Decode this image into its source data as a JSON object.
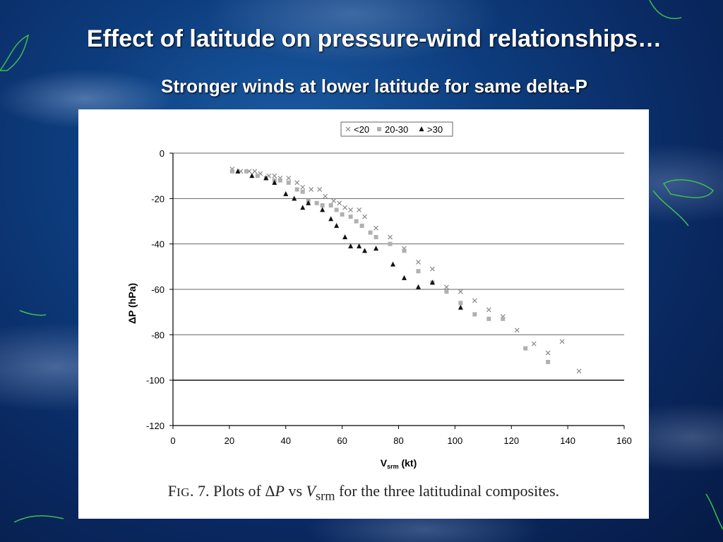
{
  "slide": {
    "title": "Effect of latitude on pressure-wind relationships…",
    "subtitle": "Stronger winds at lower latitude for same delta-P"
  },
  "figure": {
    "caption_prefix": "F",
    "caption_fig_sc": "IG",
    "caption_num": ". 7. Plots of ",
    "caption_delta": "Δ",
    "caption_p": "P",
    "caption_vs": " vs ",
    "caption_v": "V",
    "caption_sub": "srm",
    "caption_rest": " for the three latitudinal composites."
  },
  "chart_data": {
    "type": "scatter",
    "xlabel_main": "V",
    "xlabel_sub": "srm",
    "xlabel_unit": " (kt)",
    "ylabel": "ΔP (hPa)",
    "xlim": [
      0,
      160
    ],
    "ylim": [
      -120,
      0
    ],
    "xticks": [
      0,
      20,
      40,
      60,
      80,
      100,
      120,
      140,
      160
    ],
    "yticks": [
      0,
      -20,
      -40,
      -60,
      -80,
      -100,
      -120
    ],
    "grid": "horizontal",
    "legend_position": "top",
    "series": [
      {
        "name": "<20",
        "marker": "x",
        "color": "#8a8a8a",
        "points": [
          [
            21,
            -7
          ],
          [
            24,
            -8
          ],
          [
            27,
            -8
          ],
          [
            29,
            -8
          ],
          [
            31,
            -9
          ],
          [
            34,
            -10
          ],
          [
            36,
            -10
          ],
          [
            38,
            -11
          ],
          [
            41,
            -11
          ],
          [
            44,
            -13
          ],
          [
            46,
            -15
          ],
          [
            49,
            -16
          ],
          [
            52,
            -16
          ],
          [
            54,
            -19
          ],
          [
            57,
            -21
          ],
          [
            59,
            -22
          ],
          [
            61,
            -24
          ],
          [
            63,
            -25
          ],
          [
            66,
            -25
          ],
          [
            68,
            -28
          ],
          [
            72,
            -33
          ],
          [
            77,
            -37
          ],
          [
            82,
            -42
          ],
          [
            87,
            -48
          ],
          [
            92,
            -51
          ],
          [
            97,
            -59
          ],
          [
            102,
            -61
          ],
          [
            107,
            -65
          ],
          [
            112,
            -69
          ],
          [
            117,
            -72
          ],
          [
            122,
            -78
          ],
          [
            128,
            -84
          ],
          [
            133,
            -88
          ],
          [
            138,
            -83
          ],
          [
            144,
            -96
          ]
        ]
      },
      {
        "name": "20-30",
        "marker": "square",
        "color": "#b0b0b0",
        "points": [
          [
            21,
            -8
          ],
          [
            26,
            -8
          ],
          [
            30,
            -10
          ],
          [
            33,
            -11
          ],
          [
            36,
            -12
          ],
          [
            38,
            -12
          ],
          [
            41,
            -13
          ],
          [
            44,
            -16
          ],
          [
            46,
            -17
          ],
          [
            48,
            -21
          ],
          [
            51,
            -22
          ],
          [
            53,
            -23
          ],
          [
            56,
            -23
          ],
          [
            58,
            -25
          ],
          [
            60,
            -27
          ],
          [
            63,
            -28
          ],
          [
            65,
            -30
          ],
          [
            67,
            -32
          ],
          [
            70,
            -35
          ],
          [
            72,
            -37
          ],
          [
            77,
            -40
          ],
          [
            82,
            -43
          ],
          [
            87,
            -52
          ],
          [
            92,
            -57
          ],
          [
            97,
            -61
          ],
          [
            102,
            -66
          ],
          [
            107,
            -71
          ],
          [
            112,
            -73
          ],
          [
            117,
            -73
          ],
          [
            125,
            -86
          ],
          [
            133,
            -92
          ]
        ]
      },
      {
        "name": ">30",
        "marker": "triangle",
        "color": "#111111",
        "points": [
          [
            23,
            -8
          ],
          [
            28,
            -10
          ],
          [
            33,
            -11
          ],
          [
            36,
            -13
          ],
          [
            40,
            -18
          ],
          [
            43,
            -20
          ],
          [
            46,
            -24
          ],
          [
            48,
            -22
          ],
          [
            53,
            -25
          ],
          [
            56,
            -29
          ],
          [
            58,
            -32
          ],
          [
            61,
            -37
          ],
          [
            63,
            -41
          ],
          [
            66,
            -41
          ],
          [
            68,
            -43
          ],
          [
            72,
            -42
          ],
          [
            78,
            -49
          ],
          [
            82,
            -55
          ],
          [
            87,
            -59
          ],
          [
            92,
            -57
          ],
          [
            102,
            -68
          ]
        ]
      }
    ]
  }
}
